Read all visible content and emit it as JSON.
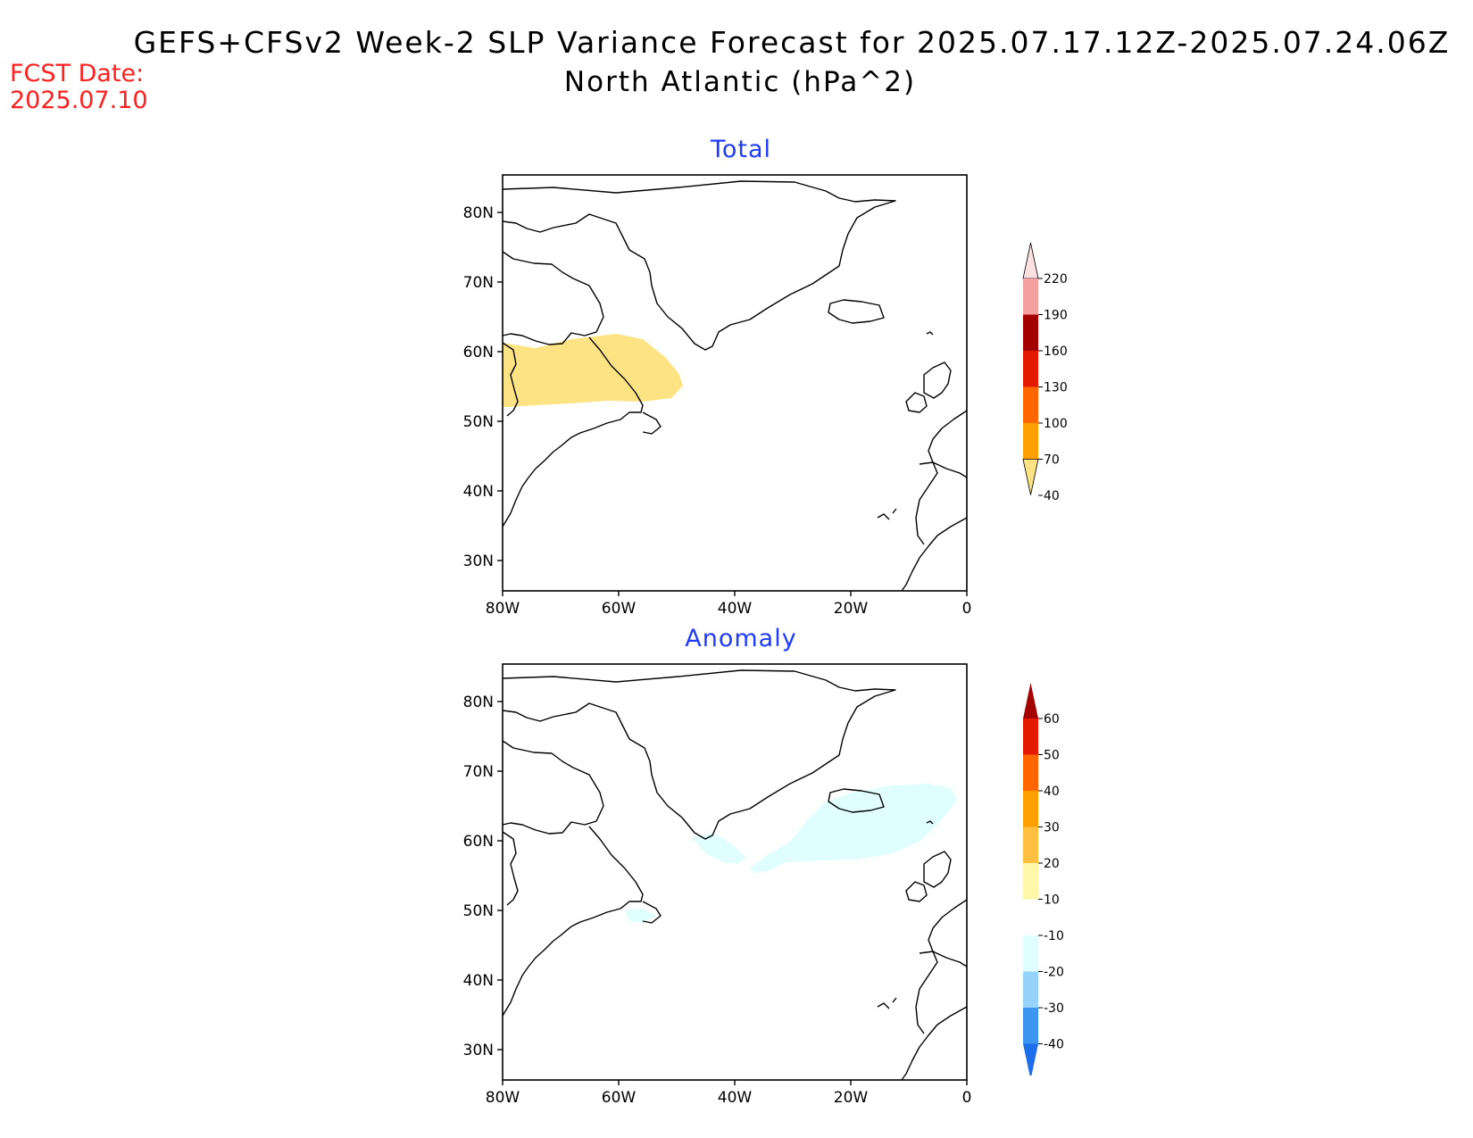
{
  "header": {
    "title": "GEFS+CFSv2 Week-2 SLP Variance Forecast for 2025.07.17.12Z-2025.07.24.06Z",
    "subtitle": "North Atlantic (hPa^2)",
    "fcst_label": "FCST Date:",
    "fcst_value": "2025.07.10"
  },
  "map": {
    "lat_ticks": [
      "80N",
      "70N",
      "60N",
      "50N",
      "40N",
      "30N"
    ],
    "lon_ticks": [
      "80W",
      "60W",
      "40W",
      "20W",
      "0"
    ]
  },
  "panels": [
    {
      "title": "Total"
    },
    {
      "title": "Anomaly"
    }
  ],
  "colorbars": {
    "total": {
      "labels": [
        "220",
        "190",
        "160",
        "130",
        "100",
        "70",
        "40"
      ],
      "colors": [
        "#fde0e0",
        "#f4a0a0",
        "#a50000",
        "#e31a00",
        "#ff6600",
        "#ffa000",
        "#fde384"
      ]
    },
    "anomaly": {
      "labels": [
        "60",
        "50",
        "40",
        "30",
        "20",
        "10",
        "-10",
        "-20",
        "-30",
        "-40"
      ],
      "colors": [
        "#a50000",
        "#e31a00",
        "#ff6600",
        "#ffa000",
        "#ffbf40",
        "#fff8a8",
        "#ffffff",
        "#e0feff",
        "#96d2fa",
        "#3c96f0",
        "#1e6eeb"
      ]
    }
  }
}
